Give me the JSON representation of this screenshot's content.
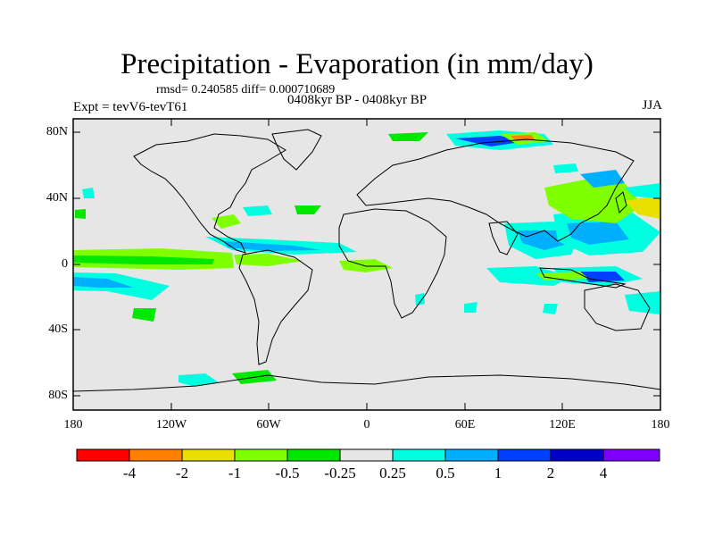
{
  "map": {
    "title": "Precipitation - Evaporation (in mm/day)",
    "stats": "rmsd= 0.240585  diff= 0.000710689",
    "period": "0408kyr BP - 0408kyr BP",
    "experiment": "Expt = tevV6-tevT61",
    "season": "JJA",
    "background_color": "#e6e6e6",
    "lat_labels": [
      "80N",
      "40N",
      "0",
      "40S",
      "80S"
    ],
    "lon_labels": [
      "180",
      "120W",
      "60W",
      "0",
      "60E",
      "120E",
      "180"
    ]
  },
  "colorbar": {
    "colors": [
      "#ff0000",
      "#ff8000",
      "#e8e000",
      "#80ff00",
      "#00e800",
      "#e6e6e6",
      "#00ffe0",
      "#00b0ff",
      "#0040ff",
      "#0000c8",
      "#8000ff"
    ],
    "labels": [
      "-4",
      "-2",
      "-1",
      "-0.5",
      "-0.25",
      "0.25",
      "0.5",
      "1",
      "2",
      "4"
    ]
  }
}
